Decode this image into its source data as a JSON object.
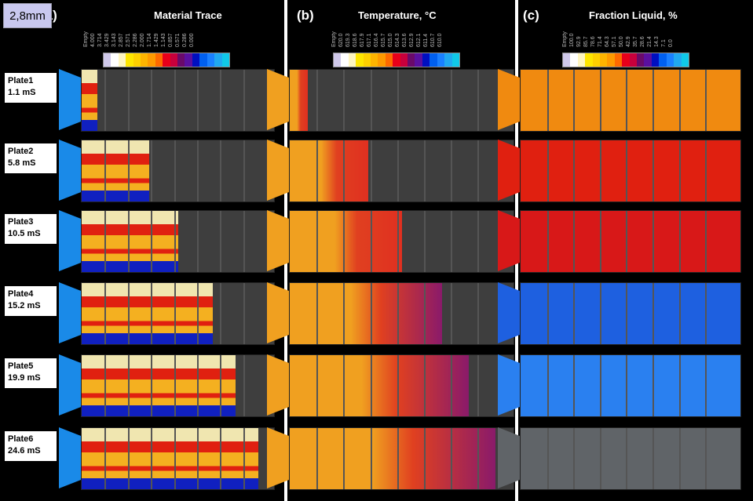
{
  "scale_label": "2,8mm",
  "panels": [
    {
      "label": "(a)",
      "title": "Material Trace",
      "ticks": [
        "Empty",
        "4.000",
        "3.714",
        "3.429",
        "3.143",
        "2.857",
        "2.571",
        "2.286",
        "2.000",
        "1.714",
        "1.429",
        "1.143",
        "0.857",
        "0.571",
        "0.286",
        "0.000"
      ]
    },
    {
      "label": "(b)",
      "title": "Temperature, °C",
      "ticks": [
        "Empty",
        "620.0",
        "619.3",
        "618.6",
        "617.9",
        "617.1",
        "616.4",
        "615.7",
        "615.0",
        "614.3",
        "613.6",
        "612.9",
        "612.1",
        "611.4",
        "610.7",
        "610.0"
      ]
    },
    {
      "label": "(c)",
      "title": "Fraction Liquid, %",
      "ticks": [
        "Empty",
        "100.0",
        "92.9",
        "85.7",
        "78.6",
        "71.4",
        "64.3",
        "57.1",
        "50.0",
        "42.9",
        "35.7",
        "28.6",
        "21.4",
        "14.3",
        "7.1",
        "0.0"
      ]
    }
  ],
  "colorbar": [
    "#cfc8ea",
    "#ffffff",
    "#fff6c0",
    "#ffe600",
    "#ffd000",
    "#ffb400",
    "#ff9a00",
    "#ff6a00",
    "#e8001a",
    "#c8003c",
    "#6a0a6a",
    "#5a10a0",
    "#0010c0",
    "#0060f0",
    "#1a80ff",
    "#20a8f0",
    "#10c8e8"
  ],
  "rows": [
    {
      "name": "Plate1",
      "time": "1.1 mS",
      "fill_fraction": 0.08,
      "fraction_liquid_color": "#f08a10"
    },
    {
      "name": "Plate2",
      "time": "5.8 mS",
      "fill_fraction": 0.35,
      "fraction_liquid_color": "#e02010"
    },
    {
      "name": "Plate3",
      "time": "10.5 mS",
      "fill_fraction": 0.5,
      "fraction_liquid_color": "#d81818"
    },
    {
      "name": "Plate4",
      "time": "15.2 mS",
      "fill_fraction": 0.68,
      "fraction_liquid_color": "#1e60e0"
    },
    {
      "name": "Plate5",
      "time": "19.9 mS",
      "fill_fraction": 0.8,
      "fraction_liquid_color": "#2a80f0"
    },
    {
      "name": "Plate6",
      "time": "24.6 mS",
      "fill_fraction": 0.92,
      "fraction_liquid_color": "#606468"
    }
  ]
}
